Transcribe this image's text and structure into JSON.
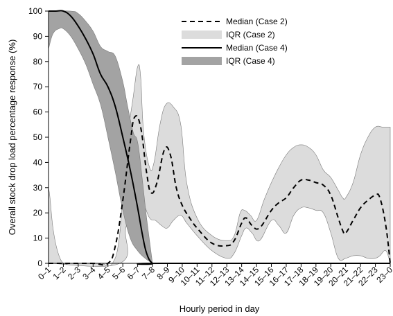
{
  "chart_data": {
    "type": "area",
    "xlabel": "Hourly period in day",
    "ylabel": "Overall stock drop load percentage response (%)",
    "categories": [
      "0–1",
      "1–2",
      "2–3",
      "3–4",
      "4–5",
      "5–6",
      "6–7",
      "7–8",
      "8–9",
      "9–10",
      "10–11",
      "11–12",
      "12–13",
      "13–14",
      "14–15",
      "15–16",
      "16–17",
      "17–18",
      "18–19",
      "19–20",
      "20–21",
      "21–22",
      "22–23",
      "23–0"
    ],
    "x_range": [
      0,
      23
    ],
    "ylim": [
      0,
      100
    ],
    "yticks": [
      0,
      10,
      20,
      30,
      40,
      50,
      60,
      70,
      80,
      90,
      100
    ],
    "grid": false,
    "legend_position": "top-right",
    "series": [
      {
        "name": "Median (Case 2)",
        "kind": "line",
        "style": "dashed",
        "color": "#000000",
        "points": [
          [
            0,
            0
          ],
          [
            1,
            0
          ],
          [
            2,
            0
          ],
          [
            3,
            0
          ],
          [
            4,
            0
          ],
          [
            4.5,
            7
          ],
          [
            5,
            25
          ],
          [
            5.5,
            48
          ],
          [
            5.8,
            58
          ],
          [
            6.2,
            54
          ],
          [
            6.6,
            36
          ],
          [
            6.9,
            28
          ],
          [
            7.3,
            32
          ],
          [
            7.8,
            45
          ],
          [
            8.2,
            43
          ],
          [
            8.6,
            30
          ],
          [
            9,
            23
          ],
          [
            9.5,
            18
          ],
          [
            10,
            14
          ],
          [
            11,
            8
          ],
          [
            12,
            7
          ],
          [
            12.5,
            9
          ],
          [
            13,
            16
          ],
          [
            13.3,
            18
          ],
          [
            13.7,
            15
          ],
          [
            14.2,
            14
          ],
          [
            15,
            21
          ],
          [
            15.5,
            24
          ],
          [
            16,
            26
          ],
          [
            16.5,
            30
          ],
          [
            17,
            33
          ],
          [
            17.5,
            33
          ],
          [
            18,
            32
          ],
          [
            18.5,
            31
          ],
          [
            19,
            27
          ],
          [
            19.5,
            18
          ],
          [
            19.8,
            13
          ],
          [
            20,
            12
          ],
          [
            20.5,
            17
          ],
          [
            21,
            22
          ],
          [
            21.5,
            25
          ],
          [
            22,
            27
          ],
          [
            22.3,
            26
          ],
          [
            22.7,
            15
          ],
          [
            23,
            0
          ]
        ]
      },
      {
        "name": "IQR (Case 2)",
        "kind": "band",
        "color": "#dcdcdc",
        "upper": [
          [
            0,
            30
          ],
          [
            0.1,
            26
          ],
          [
            0.3,
            14
          ],
          [
            0.6,
            5
          ],
          [
            1,
            0
          ],
          [
            1.5,
            0
          ],
          [
            2.5,
            0
          ],
          [
            3.5,
            0
          ],
          [
            4.3,
            0
          ],
          [
            4.8,
            12
          ],
          [
            5.2,
            44
          ],
          [
            5.7,
            66
          ],
          [
            6,
            78
          ],
          [
            6.2,
            74
          ],
          [
            6.4,
            52
          ],
          [
            6.8,
            38
          ],
          [
            7.1,
            40
          ],
          [
            7.5,
            55
          ],
          [
            7.9,
            63
          ],
          [
            8.4,
            62
          ],
          [
            8.9,
            55
          ],
          [
            9.3,
            32
          ],
          [
            10,
            18
          ],
          [
            11,
            11
          ],
          [
            12,
            9
          ],
          [
            12.5,
            11
          ],
          [
            12.9,
            20
          ],
          [
            13.2,
            21
          ],
          [
            13.6,
            19
          ],
          [
            14,
            17
          ],
          [
            14.5,
            25
          ],
          [
            15,
            32
          ],
          [
            15.5,
            38
          ],
          [
            16,
            43
          ],
          [
            16.5,
            46
          ],
          [
            17,
            47
          ],
          [
            17.5,
            46
          ],
          [
            18,
            43
          ],
          [
            18.5,
            37
          ],
          [
            19,
            34
          ],
          [
            19.5,
            29
          ],
          [
            19.8,
            26
          ],
          [
            20,
            26
          ],
          [
            20.5,
            32
          ],
          [
            21,
            43
          ],
          [
            21.5,
            50
          ],
          [
            22,
            54
          ],
          [
            22.5,
            54
          ],
          [
            23,
            54
          ]
        ],
        "lower": [
          [
            0,
            0
          ],
          [
            4.8,
            0
          ],
          [
            5.2,
            14
          ],
          [
            5.7,
            25
          ],
          [
            6,
            30
          ],
          [
            6.4,
            24
          ],
          [
            6.8,
            18
          ],
          [
            7.2,
            17
          ],
          [
            7.6,
            15
          ],
          [
            8,
            14
          ],
          [
            8.4,
            17
          ],
          [
            8.9,
            19
          ],
          [
            9.3,
            16
          ],
          [
            10,
            11
          ],
          [
            11,
            5
          ],
          [
            12,
            2
          ],
          [
            12.5,
            4
          ],
          [
            13,
            11
          ],
          [
            13.3,
            14
          ],
          [
            13.7,
            12
          ],
          [
            14.2,
            9
          ],
          [
            15,
            17
          ],
          [
            15.5,
            15
          ],
          [
            16,
            12
          ],
          [
            16.5,
            19
          ],
          [
            17,
            22
          ],
          [
            17.5,
            22
          ],
          [
            18,
            21
          ],
          [
            18.5,
            20
          ],
          [
            19,
            12
          ],
          [
            19.5,
            2
          ],
          [
            20,
            2
          ],
          [
            20.5,
            3
          ],
          [
            21,
            3
          ],
          [
            21.5,
            2
          ],
          [
            22,
            2
          ],
          [
            22.3,
            3
          ],
          [
            22.7,
            5
          ],
          [
            23,
            0
          ]
        ]
      },
      {
        "name": "Median (Case 4)",
        "kind": "line",
        "style": "solid",
        "color": "#000000",
        "points": [
          [
            0,
            100
          ],
          [
            0.5,
            100
          ],
          [
            1,
            100
          ],
          [
            1.5,
            98
          ],
          [
            2,
            94
          ],
          [
            2.5,
            89
          ],
          [
            3,
            83
          ],
          [
            3.5,
            75
          ],
          [
            4,
            70
          ],
          [
            4.5,
            62
          ],
          [
            5,
            50
          ],
          [
            5.5,
            37
          ],
          [
            6,
            22
          ],
          [
            6.3,
            12
          ],
          [
            6.6,
            4
          ],
          [
            7,
            0
          ],
          [
            7.5,
            0
          ],
          [
            23,
            0
          ]
        ]
      },
      {
        "name": "IQR (Case 4)",
        "kind": "band",
        "color": "#a3a3a3",
        "upper": [
          [
            0,
            100
          ],
          [
            1.5,
            100
          ],
          [
            2,
            99
          ],
          [
            2.5,
            96
          ],
          [
            3,
            92
          ],
          [
            3.5,
            86
          ],
          [
            4,
            84
          ],
          [
            4.5,
            82
          ],
          [
            5,
            72
          ],
          [
            5.3,
            63
          ],
          [
            5.7,
            52
          ],
          [
            6,
            48
          ],
          [
            6.3,
            34
          ],
          [
            6.6,
            18
          ],
          [
            7,
            0
          ]
        ],
        "lower": [
          [
            0,
            85
          ],
          [
            0.3,
            91
          ],
          [
            0.7,
            93
          ],
          [
            1,
            93
          ],
          [
            1.5,
            90
          ],
          [
            2,
            85
          ],
          [
            2.5,
            79
          ],
          [
            3,
            71
          ],
          [
            3.5,
            63
          ],
          [
            4,
            50
          ],
          [
            4.5,
            36
          ],
          [
            5,
            21
          ],
          [
            5.5,
            10
          ],
          [
            6,
            5
          ],
          [
            6.5,
            2
          ],
          [
            7,
            0
          ]
        ]
      }
    ]
  }
}
